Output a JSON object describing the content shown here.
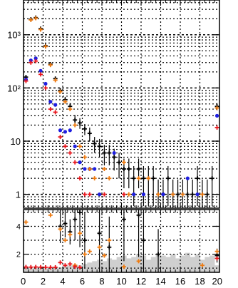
{
  "chart_data": [
    {
      "type": "scatter",
      "panel": "upper",
      "title": "",
      "xlabel": "",
      "ylabel": "",
      "xlim": [
        0,
        20
      ],
      "ylim": [
        0.55,
        4500
      ],
      "y_scale": "log",
      "grid": true,
      "y_tick_labels": [
        "1",
        "10",
        "10²",
        "10³"
      ],
      "y_tick_values": [
        1,
        10,
        100,
        1000
      ],
      "series": [
        {
          "color": "#000000",
          "marker": "cross",
          "points": [
            {
              "x": 0.25,
              "y": 160,
              "err": 12
            },
            {
              "x": 0.75,
              "y": 1950,
              "err": 40
            },
            {
              "x": 1.25,
              "y": 2100,
              "err": 45
            },
            {
              "x": 1.75,
              "y": 1300,
              "err": 35
            },
            {
              "x": 2.25,
              "y": 620,
              "err": 25
            },
            {
              "x": 2.75,
              "y": 280,
              "err": 16
            },
            {
              "x": 3.25,
              "y": 150,
              "err": 12
            },
            {
              "x": 3.75,
              "y": 90,
              "err": 10
            },
            {
              "x": 4.25,
              "y": 60,
              "err": 8
            },
            {
              "x": 4.75,
              "y": 45,
              "err": 7
            },
            {
              "x": 5.25,
              "y": 25,
              "err": 6
            },
            {
              "x": 5.75,
              "y": 22,
              "err": 5
            },
            {
              "x": 6.25,
              "y": 17,
              "err": 4
            },
            {
              "x": 6.75,
              "y": 14,
              "err": 4
            },
            {
              "x": 7.25,
              "y": 9,
              "err": 3
            },
            {
              "x": 7.75,
              "y": 8,
              "err": 3
            },
            {
              "x": 8.25,
              "y": 6,
              "err": 2.5
            },
            {
              "x": 8.75,
              "y": 6,
              "err": 2.5
            },
            {
              "x": 9.25,
              "y": 5,
              "err": 2.2
            },
            {
              "x": 9.75,
              "y": 4,
              "err": 2
            },
            {
              "x": 10.25,
              "y": 3,
              "err": 1.7
            },
            {
              "x": 10.75,
              "y": 3,
              "err": 1.7
            },
            {
              "x": 11.25,
              "y": 2,
              "err": 1.4
            },
            {
              "x": 11.75,
              "y": 3,
              "err": 1.7
            },
            {
              "x": 12.25,
              "y": 2,
              "err": 1.4
            },
            {
              "x": 12.75,
              "y": 2,
              "err": 1.4
            },
            {
              "x": 13.25,
              "y": 2,
              "err": 1.4
            },
            {
              "x": 13.75,
              "y": 1,
              "err": 0.9
            },
            {
              "x": 14.25,
              "y": 1,
              "err": 0.9
            },
            {
              "x": 14.75,
              "y": 2,
              "err": 1.4
            },
            {
              "x": 15.25,
              "y": 1,
              "err": 0.9
            },
            {
              "x": 15.75,
              "y": 1,
              "err": 0.9
            },
            {
              "x": 16.25,
              "y": 1,
              "err": 0.9
            },
            {
              "x": 16.75,
              "y": 1,
              "err": 0.9
            },
            {
              "x": 17.25,
              "y": 1,
              "err": 0.9
            },
            {
              "x": 17.75,
              "y": 2,
              "err": 1.4
            },
            {
              "x": 18.25,
              "y": 1,
              "err": 0.9
            },
            {
              "x": 18.75,
              "y": 1,
              "err": 0.9
            },
            {
              "x": 19.25,
              "y": 2,
              "err": 1.4
            },
            {
              "x": 19.75,
              "y": 45,
              "err": 7
            }
          ]
        },
        {
          "color": "#1f1fe0",
          "marker": "dot",
          "points": [
            {
              "x": 0.25,
              "y": 145
            },
            {
              "x": 0.75,
              "y": 330
            },
            {
              "x": 1.25,
              "y": 360
            },
            {
              "x": 1.75,
              "y": 210
            },
            {
              "x": 2.25,
              "y": 120
            },
            {
              "x": 2.75,
              "y": 55
            },
            {
              "x": 3.25,
              "y": 48
            },
            {
              "x": 3.75,
              "y": 16
            },
            {
              "x": 4.25,
              "y": 15
            },
            {
              "x": 4.75,
              "y": 16
            },
            {
              "x": 5.25,
              "y": 8
            },
            {
              "x": 5.75,
              "y": 4
            },
            {
              "x": 6.25,
              "y": 3
            },
            {
              "x": 6.75,
              "y": 3
            },
            {
              "x": 7.25,
              "y": 3
            },
            {
              "x": 7.75,
              "y": 1
            },
            {
              "x": 9.25,
              "y": 6
            },
            {
              "x": 11.25,
              "y": 1
            },
            {
              "x": 12.25,
              "y": 1
            },
            {
              "x": 14.25,
              "y": 1
            },
            {
              "x": 16.75,
              "y": 2
            },
            {
              "x": 17.75,
              "y": 1
            },
            {
              "x": 19.75,
              "y": 30
            }
          ]
        },
        {
          "color": "#e8161c",
          "marker": "cross",
          "points": [
            {
              "x": 0.25,
              "y": 135
            },
            {
              "x": 0.75,
              "y": 300
            },
            {
              "x": 1.25,
              "y": 320
            },
            {
              "x": 1.75,
              "y": 180
            },
            {
              "x": 2.25,
              "y": 100
            },
            {
              "x": 2.75,
              "y": 40
            },
            {
              "x": 3.25,
              "y": 35
            },
            {
              "x": 3.75,
              "y": 12
            },
            {
              "x": 4.25,
              "y": 8
            },
            {
              "x": 4.75,
              "y": 6
            },
            {
              "x": 5.25,
              "y": 4
            },
            {
              "x": 5.75,
              "y": 2
            },
            {
              "x": 6.25,
              "y": 1
            },
            {
              "x": 6.75,
              "y": 1
            },
            {
              "x": 8.25,
              "y": 1
            },
            {
              "x": 10.25,
              "y": 1
            },
            {
              "x": 19.75,
              "y": 18
            }
          ]
        },
        {
          "color": "#ee7a10",
          "marker": "cross",
          "points": [
            {
              "x": 0.75,
              "y": 1900
            },
            {
              "x": 1.25,
              "y": 2050
            },
            {
              "x": 1.75,
              "y": 1250
            },
            {
              "x": 2.25,
              "y": 600
            },
            {
              "x": 2.75,
              "y": 270
            },
            {
              "x": 3.25,
              "y": 140
            },
            {
              "x": 3.75,
              "y": 85
            },
            {
              "x": 4.25,
              "y": 55
            },
            {
              "x": 4.75,
              "y": 40
            },
            {
              "x": 5.25,
              "y": 20
            },
            {
              "x": 5.75,
              "y": 8
            },
            {
              "x": 6.25,
              "y": 5
            },
            {
              "x": 6.75,
              "y": 3
            },
            {
              "x": 7.25,
              "y": 2
            },
            {
              "x": 8.25,
              "y": 3
            },
            {
              "x": 8.75,
              "y": 2
            },
            {
              "x": 10.25,
              "y": 4
            },
            {
              "x": 10.75,
              "y": 1
            },
            {
              "x": 11.75,
              "y": 2
            },
            {
              "x": 12.75,
              "y": 2
            },
            {
              "x": 13.75,
              "y": 1
            },
            {
              "x": 15.25,
              "y": 1
            },
            {
              "x": 16.25,
              "y": 1
            },
            {
              "x": 18.25,
              "y": 1
            },
            {
              "x": 19.75,
              "y": 42
            }
          ]
        }
      ]
    },
    {
      "type": "scatter",
      "panel": "lower",
      "title": "",
      "xlabel": "",
      "ylabel": "",
      "xlim": [
        0,
        20
      ],
      "ylim": [
        0.7,
        5.2
      ],
      "grid": true,
      "x_tick_labels": [
        "0",
        "2",
        "4",
        "6",
        "8",
        "10",
        "12",
        "14",
        "16",
        "18",
        "20"
      ],
      "x_tick_values": [
        0,
        2,
        4,
        6,
        8,
        10,
        12,
        14,
        16,
        18,
        20
      ],
      "y_tick_labels": [
        "2",
        "4"
      ],
      "y_tick_values": [
        2,
        4
      ],
      "band": {
        "color": "#cfcfcf",
        "upper": [
          1.0,
          1.0,
          1.0,
          1.0,
          1.0,
          1.0,
          1.1,
          1.05,
          1.15,
          1.2,
          1.25,
          1.2,
          1.3,
          1.4,
          1.5,
          1.6,
          1.5,
          1.7,
          1.6,
          1.8,
          1.9,
          1.7,
          1.8,
          2.0,
          1.9,
          1.6,
          1.8,
          2.0,
          1.9,
          1.8,
          2.0,
          1.7,
          1.9,
          2.1,
          1.8,
          2.0,
          1.6,
          1.8,
          1.9,
          1.2
        ]
      },
      "series": [
        {
          "color": "#000000",
          "marker": "cross",
          "points": [
            {
              "x": 3.75,
              "y": 4.0,
              "err": 1.2
            },
            {
              "x": 4.25,
              "y": 4.2,
              "err": 1.0
            },
            {
              "x": 4.75,
              "y": 3.6,
              "err": 0.9
            },
            {
              "x": 5.25,
              "y": 4.5,
              "err": 1.5
            },
            {
              "x": 5.75,
              "y": 5.0,
              "err": 2.5
            },
            {
              "x": 6.25,
              "y": 3.0,
              "err": 2.0
            },
            {
              "x": 7.75,
              "y": 3.5,
              "err": 2.8
            },
            {
              "x": 8.75,
              "y": 2.5,
              "err": 2.2
            },
            {
              "x": 10.25,
              "y": 4.5,
              "err": 3.0
            },
            {
              "x": 11.75,
              "y": 4.8,
              "err": 3.0
            },
            {
              "x": 12.25,
              "y": 3.0,
              "err": 2.6
            },
            {
              "x": 13.75,
              "y": 2.0,
              "err": 1.8
            },
            {
              "x": 19.75,
              "y": 1.9,
              "err": 0.5
            }
          ]
        },
        {
          "color": "#ee7a10",
          "marker": "cross",
          "points": [
            {
              "x": 0.25,
              "y": 4.3
            },
            {
              "x": 2.75,
              "y": 4.8
            },
            {
              "x": 3.75,
              "y": 3.8
            },
            {
              "x": 4.25,
              "y": 3.0
            },
            {
              "x": 4.75,
              "y": 3.4
            },
            {
              "x": 5.25,
              "y": 1.2
            },
            {
              "x": 5.75,
              "y": 3.5
            },
            {
              "x": 6.25,
              "y": 2.0
            },
            {
              "x": 6.75,
              "y": 2.2
            },
            {
              "x": 7.75,
              "y": 2.5
            },
            {
              "x": 8.25,
              "y": 1.9
            },
            {
              "x": 8.75,
              "y": 3.0
            },
            {
              "x": 10.25,
              "y": 1.1
            },
            {
              "x": 11.75,
              "y": 1.5
            },
            {
              "x": 18.25,
              "y": 1.2
            },
            {
              "x": 19.75,
              "y": 2.2
            }
          ]
        },
        {
          "color": "#e8161c",
          "marker": "cross",
          "points": [
            {
              "x": 0.25,
              "y": 1.08
            },
            {
              "x": 0.75,
              "y": 1.07
            },
            {
              "x": 1.25,
              "y": 1.08
            },
            {
              "x": 1.75,
              "y": 1.07
            },
            {
              "x": 2.25,
              "y": 1.06
            },
            {
              "x": 2.75,
              "y": 1.05
            },
            {
              "x": 3.25,
              "y": 1.06
            },
            {
              "x": 3.75,
              "y": 1.4
            },
            {
              "x": 4.25,
              "y": 1.2
            },
            {
              "x": 4.75,
              "y": 1.3
            },
            {
              "x": 5.25,
              "y": 1.1
            },
            {
              "x": 5.75,
              "y": 1.05
            },
            {
              "x": 19.75,
              "y": 1.7
            }
          ]
        }
      ]
    }
  ]
}
